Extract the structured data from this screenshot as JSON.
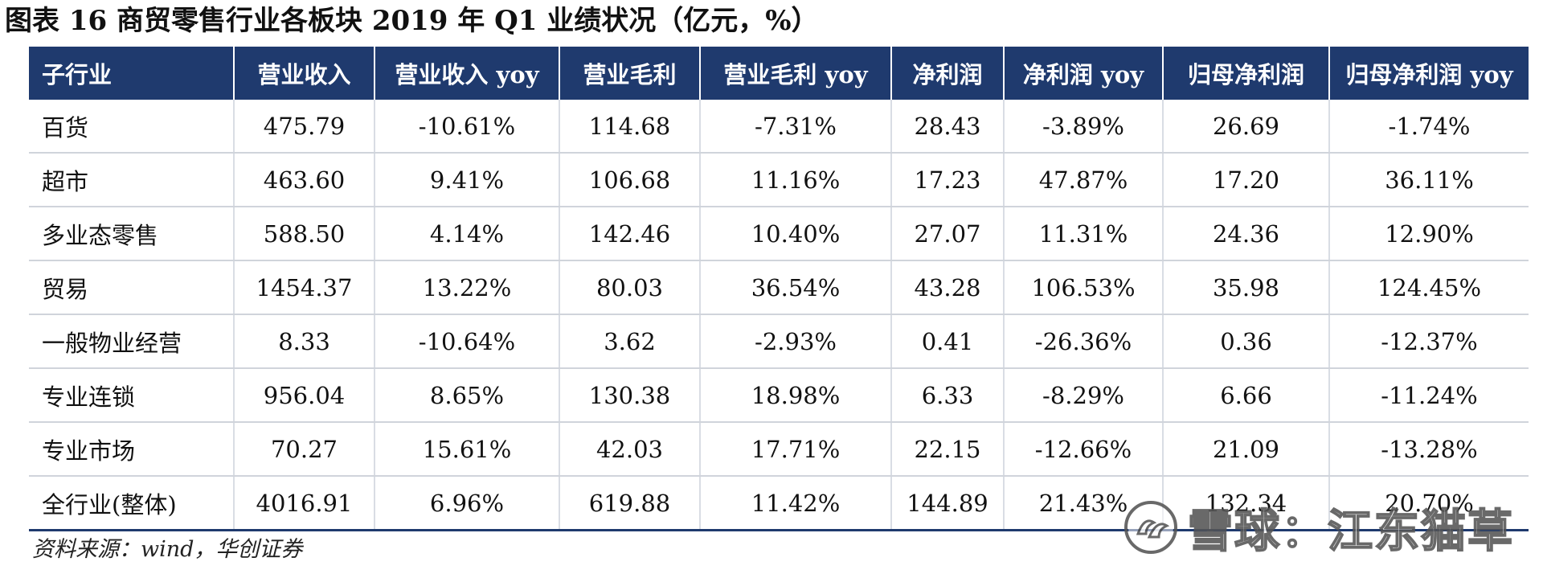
{
  "title": "图表 16 商贸零售行业各板块 2019 年 Q1 业绩状况（亿元，%）",
  "table": {
    "headers": [
      "子行业",
      "营业收入",
      "营业收入 yoy",
      "营业毛利",
      "营业毛利 yoy",
      "净利润",
      "净利润 yoy",
      "归母净利润",
      "归母净利润 yoy"
    ],
    "rows": [
      [
        "百货",
        "475.79",
        "-10.61%",
        "114.68",
        "-7.31%",
        "28.43",
        "-3.89%",
        "26.69",
        "-1.74%"
      ],
      [
        "超市",
        "463.60",
        "9.41%",
        "106.68",
        "11.16%",
        "17.23",
        "47.87%",
        "17.20",
        "36.11%"
      ],
      [
        "多业态零售",
        "588.50",
        "4.14%",
        "142.46",
        "10.40%",
        "27.07",
        "11.31%",
        "24.36",
        "12.90%"
      ],
      [
        "贸易",
        "1454.37",
        "13.22%",
        "80.03",
        "36.54%",
        "43.28",
        "106.53%",
        "35.98",
        "124.45%"
      ],
      [
        "一般物业经营",
        "8.33",
        "-10.64%",
        "3.62",
        "-2.93%",
        "0.41",
        "-26.36%",
        "0.36",
        "-12.37%"
      ],
      [
        "专业连锁",
        "956.04",
        "8.65%",
        "130.38",
        "18.98%",
        "6.33",
        "-8.29%",
        "6.66",
        "-11.24%"
      ],
      [
        "专业市场",
        "70.27",
        "15.61%",
        "42.03",
        "17.71%",
        "22.15",
        "-12.66%",
        "21.09",
        "-13.28%"
      ],
      [
        "全行业(整体)",
        "4016.91",
        "6.96%",
        "619.88",
        "11.42%",
        "144.89",
        "21.43%",
        "132.34",
        "20.70%"
      ]
    ]
  },
  "source": "资料来源：wind，华创证券",
  "watermark": {
    "text": "雪球：江东猫草",
    "icon": "snowball-logo-icon"
  },
  "colors": {
    "header_bg": "#1f3a6e",
    "header_text": "#ffffff",
    "row_divider": "#d0d4db"
  }
}
